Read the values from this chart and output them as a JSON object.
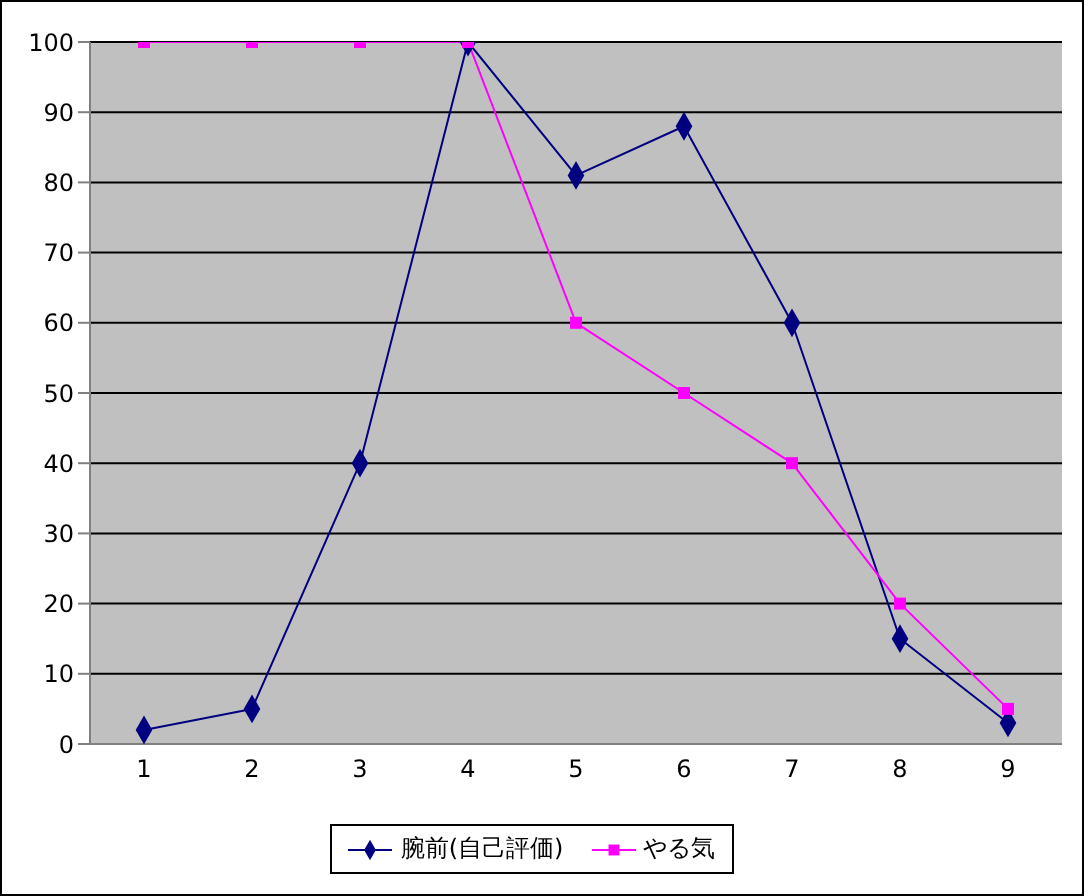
{
  "chart_data": {
    "type": "line",
    "categories": [
      "1",
      "2",
      "3",
      "4",
      "5",
      "6",
      "7",
      "8",
      "9"
    ],
    "series": [
      {
        "name": "腕前(自己評価)",
        "color": "#000080",
        "marker": "diamond",
        "values": [
          2,
          5,
          40,
          100,
          81,
          88,
          60,
          15,
          3
        ]
      },
      {
        "name": "やる気",
        "color": "#ff00ff",
        "marker": "square",
        "values": [
          100,
          100,
          100,
          100,
          60,
          50,
          40,
          20,
          5
        ]
      }
    ],
    "ylim": [
      0,
      100
    ],
    "yticks": [
      0,
      10,
      20,
      30,
      40,
      50,
      60,
      70,
      80,
      90,
      100
    ],
    "grid": "y",
    "legend": "bottom"
  }
}
